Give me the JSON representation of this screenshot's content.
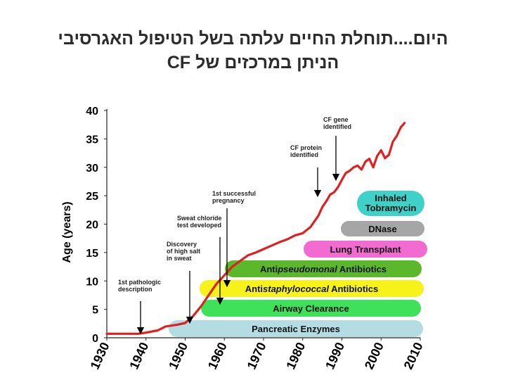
{
  "title": {
    "line1": "היום....תוחלת החיים עלתה בשל הטיפול האגרסיבי",
    "line2": "הניתן במרכזים של CF"
  },
  "chart_data": {
    "type": "line",
    "title": "",
    "xlabel": "",
    "ylabel": "Age (years)",
    "xlim": [
      1930,
      2010
    ],
    "ylim": [
      0,
      40
    ],
    "xticks": [
      "1930",
      "1940",
      "1950",
      "1960",
      "1970",
      "1980",
      "1990",
      "2000",
      "2010"
    ],
    "yticks": [
      "0",
      "5",
      "10",
      "15",
      "20",
      "25",
      "30",
      "35",
      "40"
    ],
    "series": [
      {
        "color": "#e02020",
        "x": [
          1930,
          1935,
          1938,
          1940,
          1943,
          1945,
          1948,
          1950,
          1952,
          1954,
          1956,
          1958,
          1960,
          1962,
          1964,
          1966,
          1968,
          1970,
          1972,
          1974,
          1976,
          1978,
          1980,
          1982,
          1984,
          1985,
          1986,
          1987,
          1988,
          1989,
          1990,
          1991,
          1992,
          1993,
          1994,
          1995,
          1996,
          1997,
          1998,
          1999,
          2000,
          2001,
          2002,
          2003,
          2004,
          2005,
          2006
        ],
        "y": [
          0.7,
          0.7,
          0.7,
          0.9,
          1.3,
          2.0,
          2.3,
          2.6,
          3.8,
          5.5,
          7.5,
          9.5,
          11.0,
          12.5,
          13.5,
          14.5,
          15.0,
          15.6,
          16.2,
          16.8,
          17.3,
          18.0,
          18.4,
          19.5,
          21.5,
          23.0,
          24.0,
          25.2,
          25.6,
          26.5,
          27.8,
          29.0,
          29.4,
          30.0,
          30.3,
          29.6,
          31.0,
          31.5,
          30.0,
          32.0,
          33.0,
          31.6,
          32.2,
          34.5,
          35.5,
          37.0,
          37.8
        ]
      }
    ],
    "annotations": [
      {
        "text": [
          "1st pathologic",
          "description"
        ],
        "x": 1938,
        "y": 0.5
      },
      {
        "text": [
          "Discovery",
          "of high salt",
          "in sweat"
        ],
        "x": 1948,
        "y": 2.5
      },
      {
        "text": [
          "Sweat chloride",
          "test developed"
        ],
        "x": 1955,
        "y": 6.8
      },
      {
        "text": [
          "1st successful",
          "pregnancy"
        ],
        "x": 1958,
        "y": 9.5
      },
      {
        "text": [
          "CF protein",
          "identified"
        ],
        "x": 1989,
        "y": 25.8
      },
      {
        "text": [
          "CF gene",
          "identified"
        ],
        "x": 1994,
        "y": 29.0
      }
    ],
    "therapy_bands": [
      {
        "label": "Inhaled",
        "label2": "Tobramycin",
        "color": "#3fd1c8"
      },
      {
        "label": "DNase",
        "color": "#a6a6a6"
      },
      {
        "label": "Lung Transplant",
        "color": "#f16bd0"
      },
      {
        "label": "Antipseudomonal Antibiotics",
        "color": "#5bb82a"
      },
      {
        "label": "Antistaphylococcal Antibiotics",
        "color": "#f6f21a"
      },
      {
        "label": "Airway Clearance",
        "color": "#3fe05a"
      },
      {
        "label": "Pancreatic Enzymes",
        "color": "#b3dde3"
      }
    ]
  }
}
